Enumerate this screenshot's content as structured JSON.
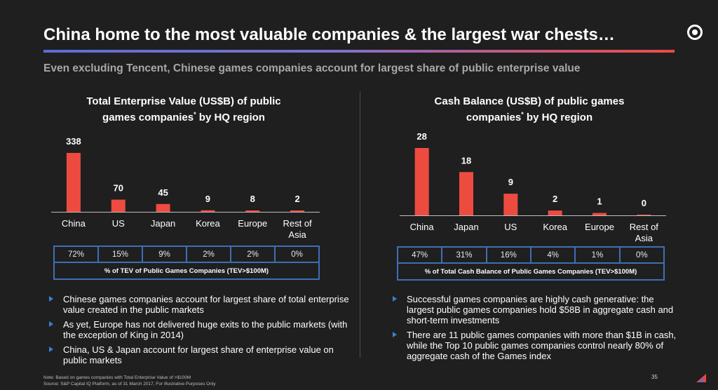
{
  "header": {
    "title": "China home to the most valuable companies & the largest war chests…",
    "subtitle": "Even excluding Tencent, Chinese games companies account for largest share of public enterprise value"
  },
  "colors": {
    "bar": "#ee4b40",
    "table_border": "#3d6fb5",
    "bullet_arrow": "#3d7fd0"
  },
  "chart_data": [
    {
      "type": "bar",
      "title": "Total Enterprise Value (US$B) of public games companies* by HQ region",
      "title_line1": "Total Enterprise Value (US$B) of public",
      "title_line2": "games companies",
      "title_sup": "*",
      "title_line2_end": " by HQ region",
      "categories": [
        "China",
        "US",
        "Japan",
        "Korea",
        "Europe",
        "Rest of Asia"
      ],
      "values": [
        338,
        70,
        45,
        9,
        8,
        2
      ],
      "ylim": [
        0,
        338
      ],
      "shares": [
        "72%",
        "15%",
        "9%",
        "2%",
        "2%",
        "0%"
      ],
      "share_caption": "% of TEV of Public Games Companies (TEV>$100M)"
    },
    {
      "type": "bar",
      "title": "Cash Balance (US$B) of public games companies* by HQ region",
      "title_line1": "Cash Balance (US$B) of public games",
      "title_line2": "companies",
      "title_sup": "*",
      "title_line2_end": " by HQ region",
      "categories": [
        "China",
        "Japan",
        "US",
        "Korea",
        "Europe",
        "Rest of Asia"
      ],
      "values": [
        28,
        18,
        9,
        2,
        1,
        0
      ],
      "ylim": [
        0,
        28
      ],
      "shares": [
        "47%",
        "31%",
        "16%",
        "4%",
        "1%",
        "0%"
      ],
      "share_caption": "% of Total Cash Balance of Public Games Companies (TEV>$100M)"
    }
  ],
  "bullets_left": [
    "Chinese games companies account for largest share of total enterprise value created in the public markets",
    "As yet, Europe has not delivered huge exits to the public markets (with the exception of King in 2014)",
    "China, US & Japan account for largest share of enterprise value on public markets"
  ],
  "bullets_right": [
    "Successful games companies are highly cash generative: the largest public games companies hold $58B in aggregate cash and short-term investments",
    "There are 11 public games companies with more than $1B in cash, while the Top 10 public games companies control nearly 80% of aggregate cash of the Games index"
  ],
  "footer": {
    "note": "Note: Based on games companies with Total Enterprise Value of >$100M",
    "source": "Source: S&P Capital IQ Platform, as of 31 March 2017, For Illustrative Purposes Only",
    "page_number": "35"
  },
  "icons": {
    "logo": "circle-target-icon",
    "brand": "red-triangle-logo-icon",
    "bullet": "triangle-bullet-icon"
  }
}
